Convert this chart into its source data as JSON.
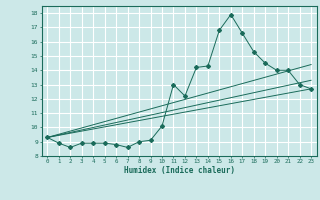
{
  "xlabel": "Humidex (Indice chaleur)",
  "ylabel": "",
  "bg_color": "#cce8e8",
  "grid_color": "#ffffff",
  "line_color": "#1a6b5a",
  "xlim": [
    -0.5,
    23.5
  ],
  "ylim": [
    8,
    18.5
  ],
  "xticks": [
    0,
    1,
    2,
    3,
    4,
    5,
    6,
    7,
    8,
    9,
    10,
    11,
    12,
    13,
    14,
    15,
    16,
    17,
    18,
    19,
    20,
    21,
    22,
    23
  ],
  "yticks": [
    8,
    9,
    10,
    11,
    12,
    13,
    14,
    15,
    16,
    17,
    18
  ],
  "curve_x": [
    0,
    1,
    2,
    3,
    4,
    5,
    6,
    7,
    8,
    9,
    10,
    11,
    12,
    13,
    14,
    15,
    16,
    17,
    18,
    19,
    20,
    21,
    22,
    23
  ],
  "curve_y": [
    9.3,
    8.9,
    8.6,
    8.9,
    8.9,
    8.9,
    8.8,
    8.6,
    9.0,
    9.1,
    10.1,
    13.0,
    12.2,
    14.2,
    14.3,
    16.8,
    17.9,
    16.6,
    15.3,
    14.5,
    14.0,
    14.0,
    13.0,
    12.7
  ],
  "line1_x": [
    0,
    23
  ],
  "line1_y": [
    9.3,
    12.7
  ],
  "line2_x": [
    0,
    23
  ],
  "line2_y": [
    9.3,
    13.3
  ],
  "line3_x": [
    0,
    23
  ],
  "line3_y": [
    9.3,
    14.4
  ]
}
